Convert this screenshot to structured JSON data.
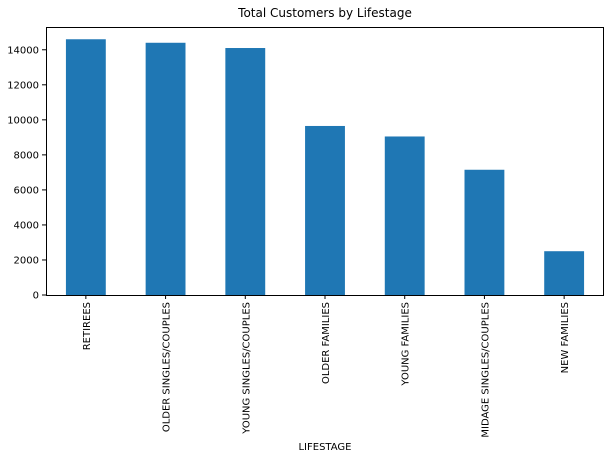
{
  "chart_data": {
    "type": "bar",
    "title": "Total Customers by Lifestage",
    "xlabel": "LIFESTAGE",
    "ylabel": "",
    "categories": [
      "RETIREES",
      "OLDER SINGLES/COUPLES",
      "YOUNG SINGLES/COUPLES",
      "OLDER FAMILIES",
      "YOUNG FAMILIES",
      "MIDAGE SINGLES/COUPLES",
      "NEW FAMILIES"
    ],
    "values": [
      14600,
      14400,
      14100,
      9650,
      9050,
      7150,
      2500
    ],
    "ylim": [
      0,
      15300
    ],
    "yticks": [
      0,
      2000,
      4000,
      6000,
      8000,
      10000,
      12000,
      14000
    ],
    "grid": false,
    "legend": "none",
    "bar_color": "#1f77b4"
  }
}
